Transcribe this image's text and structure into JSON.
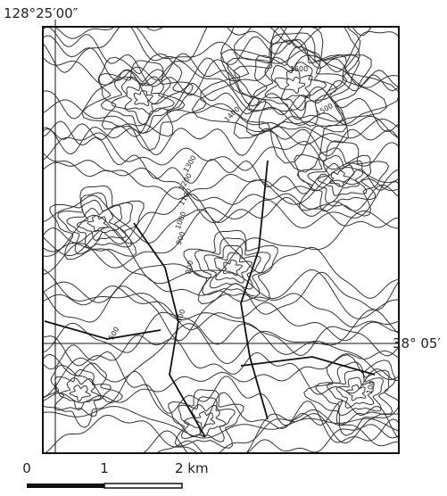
{
  "map": {
    "longitude_label": "128°25′00″",
    "latitude_label": "38° 05′",
    "contour_labels": [
      "1600",
      "1500",
      "1400",
      "1300",
      "1200",
      "1100",
      "1000",
      "900",
      "800",
      "600",
      "500",
      "100"
    ],
    "scale_labels": [
      "0",
      "1",
      "2 km"
    ]
  }
}
